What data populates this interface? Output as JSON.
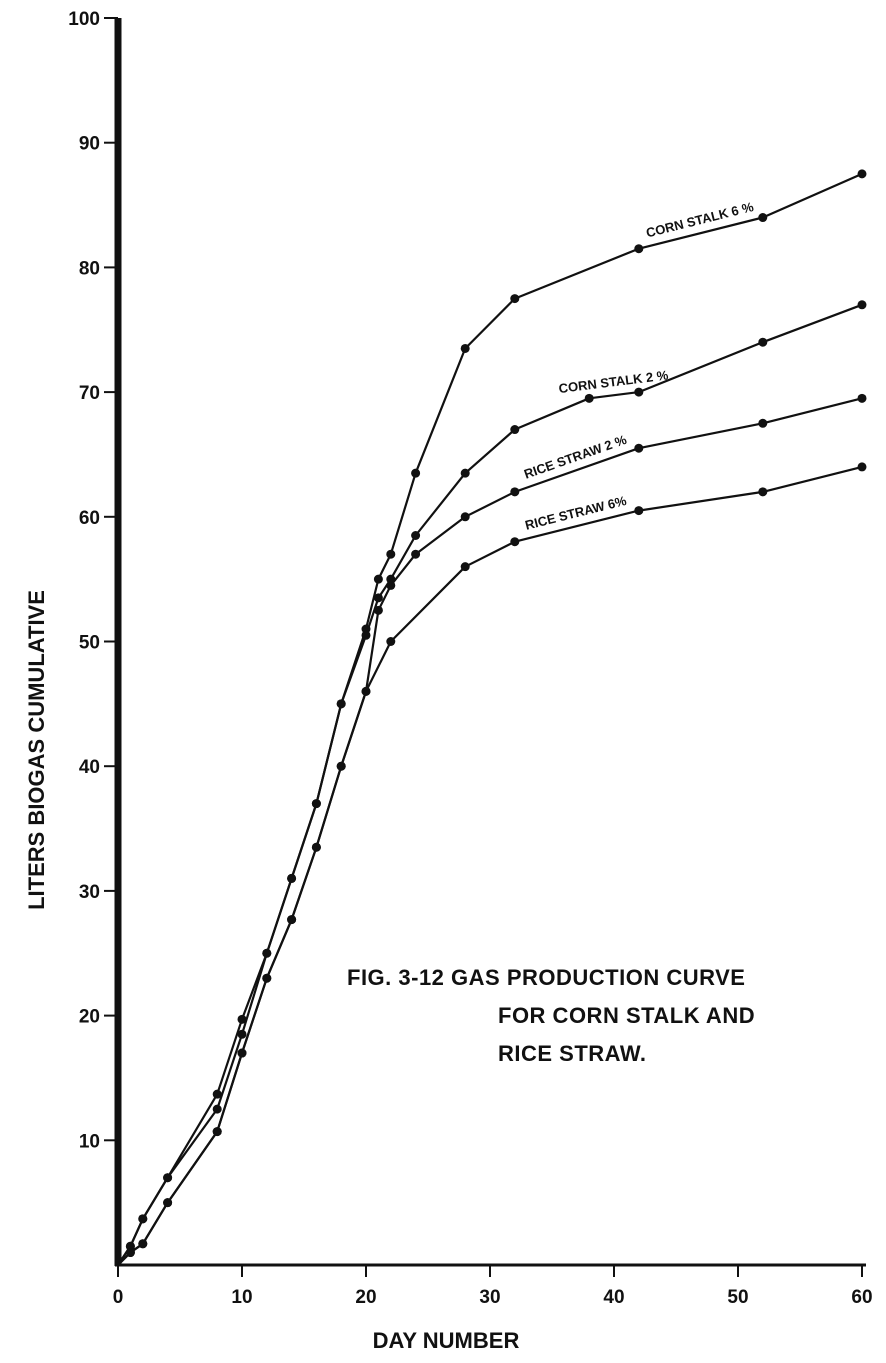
{
  "chart_data": {
    "type": "line",
    "title": "",
    "caption": [
      "FIG. 3-12  GAS PRODUCTION CURVE",
      "FOR CORN STALK AND",
      "RICE STRAW."
    ],
    "xlabel": "DAY NUMBER",
    "ylabel": "LITERS BIOGAS CUMULATIVE",
    "xlim": [
      0,
      60
    ],
    "ylim": [
      0,
      100
    ],
    "x_ticks": [
      0,
      10,
      20,
      30,
      40,
      50,
      60
    ],
    "x_tick_labels": [
      "0",
      "10",
      "20",
      "30",
      "40",
      "50",
      "60"
    ],
    "y_ticks": [
      10,
      20,
      30,
      40,
      50,
      60,
      70,
      80,
      90,
      100
    ],
    "y_tick_labels": [
      "10",
      "20",
      "30",
      "40",
      "50",
      "60",
      "70",
      "80",
      "90",
      "100"
    ],
    "grid": false,
    "legend": "none (series labelled directly on curves)",
    "line_color": "#111111",
    "series": [
      {
        "name": "CORN STALK 6 %",
        "x": [
          0,
          1,
          2,
          4,
          8,
          10,
          12,
          14,
          16,
          18,
          20,
          21,
          22,
          24,
          28,
          32,
          42,
          52,
          60
        ],
        "y": [
          0,
          1.5,
          3.7,
          7,
          13.7,
          19.7,
          25,
          31,
          37,
          45,
          51,
          55,
          57,
          63.5,
          73.5,
          77.5,
          81.5,
          84,
          87.5
        ]
      },
      {
        "name": "CORN STALK 2 %",
        "x": [
          0,
          1,
          2,
          4,
          8,
          10,
          12,
          14,
          16,
          18,
          20,
          21,
          22,
          24,
          28,
          32,
          38,
          42,
          52,
          60
        ],
        "y": [
          0,
          1.5,
          3.7,
          7,
          12.5,
          18.5,
          25,
          31,
          37,
          45,
          50.5,
          53.5,
          55,
          58.5,
          63.5,
          67,
          69.5,
          70,
          74,
          77
        ]
      },
      {
        "name": "RICE STRAW 2 %",
        "x": [
          0,
          1,
          2,
          4,
          8,
          10,
          12,
          14,
          16,
          18,
          20,
          21,
          22,
          24,
          28,
          32,
          42,
          52,
          60
        ],
        "y": [
          0,
          1,
          1.7,
          5,
          10.7,
          17,
          23,
          27.7,
          33.5,
          40,
          46,
          52.5,
          54.5,
          57,
          60,
          62,
          65.5,
          67.5,
          69.5
        ]
      },
      {
        "name": "RICE STRAW 6%",
        "x": [
          0,
          1,
          2,
          4,
          8,
          10,
          12,
          14,
          16,
          18,
          20,
          22,
          28,
          32,
          42,
          52,
          60
        ],
        "y": [
          0,
          1,
          1.7,
          5,
          10.7,
          17,
          23,
          27.7,
          33.5,
          40,
          46,
          50,
          56,
          58,
          60.5,
          62,
          64
        ]
      }
    ]
  }
}
